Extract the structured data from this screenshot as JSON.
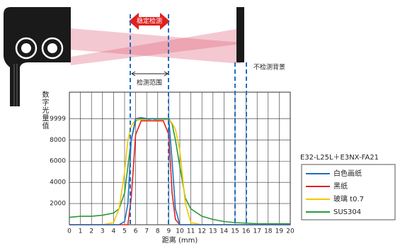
{
  "chart_data": {
    "type": "line",
    "ylabel": "数字光量值",
    "xlabel": "距离 (mm)",
    "legend_title": "E32-L25L＋E3NX-FA21",
    "annotations": [
      "稳定检测",
      "不检测背景",
      "检测范围"
    ],
    "x": [
      0,
      1,
      2,
      3,
      4,
      4.5,
      5,
      5.3,
      5.6,
      6,
      6.5,
      7,
      7.5,
      8,
      8.5,
      9,
      9.3,
      9.6,
      10,
      10.5,
      11,
      12,
      13,
      14,
      15,
      16,
      17,
      18,
      19,
      20
    ],
    "series": [
      {
        "name": "白色画纸",
        "color": "#1f6fc0",
        "values": [
          0,
          0,
          0,
          0,
          0,
          0,
          300,
          2000,
          8000,
          10000,
          10100,
          10000,
          10000,
          10000,
          10000,
          10000,
          6000,
          1500,
          0,
          0,
          0,
          0,
          0,
          0,
          0,
          0,
          0,
          0,
          0,
          0
        ]
      },
      {
        "name": "黑纸",
        "color": "#e02020",
        "values": [
          0,
          0,
          0,
          0,
          0,
          0,
          0,
          0,
          2500,
          8500,
          9800,
          9800,
          9800,
          9800,
          9800,
          8500,
          3000,
          500,
          0,
          0,
          0,
          0,
          0,
          0,
          0,
          0,
          0,
          0,
          0,
          0
        ]
      },
      {
        "name": "玻璃 t0.7",
        "color": "#f5c800",
        "values": [
          0,
          0,
          0,
          0,
          200,
          1500,
          5000,
          8000,
          9300,
          9900,
          9900,
          9900,
          9800,
          9900,
          9900,
          9900,
          9600,
          9000,
          7000,
          2000,
          200,
          0,
          0,
          0,
          0,
          0,
          0,
          0,
          0,
          0
        ]
      },
      {
        "name": "SUS304",
        "color": "#2a9a3a",
        "values": [
          700,
          800,
          800,
          900,
          1100,
          1500,
          3000,
          5500,
          8000,
          9800,
          10000,
          9900,
          10000,
          9900,
          10000,
          10000,
          9500,
          8000,
          5500,
          2500,
          1500,
          800,
          500,
          300,
          200,
          150,
          100,
          100,
          100,
          100
        ]
      }
    ],
    "xlim": [
      0,
      20
    ],
    "xticks": [
      0,
      1,
      2,
      3,
      4,
      5,
      6,
      7,
      8,
      9,
      10,
      11,
      12,
      13,
      14,
      15,
      16,
      17,
      18,
      19,
      20
    ],
    "ylim": [
      0,
      12500
    ],
    "yticks": [
      2000,
      4000,
      6000,
      8000,
      9999
    ],
    "grid": true
  }
}
